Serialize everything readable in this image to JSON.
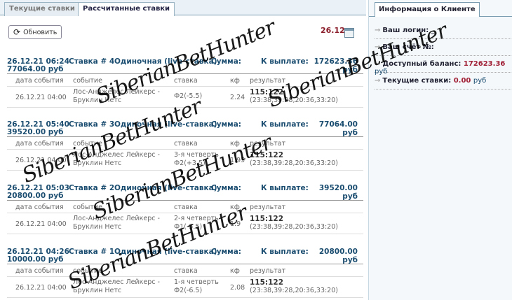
{
  "tabs": [
    {
      "label": "Текущие ставки",
      "active": false
    },
    {
      "label": "Рассчитанные ставки",
      "active": true
    }
  ],
  "refresh_label": "Обновить",
  "date_filter": "26.12",
  "columns": {
    "date": "дата события",
    "event": "событие",
    "bet": "ставка",
    "kf": "кф",
    "result": "результат"
  },
  "bets": [
    {
      "datetime": "26.12.21 06:24",
      "title": "Ставка # 4",
      "type": "Одиночная (live-ставка)",
      "sum_label": "Сумма:",
      "sum": "77064.00 руб",
      "payout_label": "К выплате:",
      "payout": "172623.36 руб",
      "event_date": "26.12.21 04:00",
      "event": "Лос-Анджелес Лейкерс - Бруклин Нетс",
      "stake_line1": "",
      "stake_line2": "Ф2(-5.5)",
      "kf": "2.24",
      "score": "115:122",
      "quarters": "(23:38,39:28,20:36,33:20)"
    },
    {
      "datetime": "26.12.21 05:40",
      "title": "Ставка # 3",
      "type": "Одиночная (live-ставка)",
      "sum_label": "Сумма:",
      "sum": "39520.00 руб",
      "payout_label": "К выплате:",
      "payout": "77064.00 руб",
      "event_date": "26.12.21 04:00",
      "event": "Лос-Анджелес Лейкерс - Бруклин Нетс",
      "stake_line1": "3-я четверть",
      "stake_line2": "Ф2(+3.5)",
      "kf": "1.95",
      "score": "115:122",
      "quarters": "(23:38,39:28,20:36,33:20)"
    },
    {
      "datetime": "26.12.21 05:03",
      "title": "Ставка # 2",
      "type": "Одиночная (live-ставка)",
      "sum_label": "Сумма:",
      "sum": "20800.00 руб",
      "payout_label": "К выплате:",
      "payout": "39520.00 руб",
      "event_date": "26.12.21 04:00",
      "event": "Лос-Анджелес Лейкерс - Бруклин Нетс",
      "stake_line1": "2-я четверть",
      "stake_line2": "Ф1(-5.5)",
      "kf": "1.9",
      "score": "115:122",
      "quarters": "(23:38,39:28,20:36,33:20)"
    },
    {
      "datetime": "26.12.21 04:26",
      "title": "Ставка # 1",
      "type": "Одиночная (live-ставка)",
      "sum_label": "Сумма:",
      "sum": "10000.00 руб",
      "payout_label": "К выплате:",
      "payout": "20800.00 руб",
      "event_date": "26.12.21 04:00",
      "event": "Лос-Анджелес Лейкерс - Бруклин Нетс",
      "stake_line1": "1-я четверть",
      "stake_line2": "Ф2(-6.5)",
      "kf": "2.08",
      "score": "115:122",
      "quarters": "(23:38,39:28,20:36,33:20)"
    }
  ],
  "client": {
    "tab": "Информация о Клиенте",
    "login_label": "Ваш логин:",
    "login": "_",
    "account_label": "Ваш счёт №:",
    "balance_label": "Доступный баланс:",
    "balance": "172623.36",
    "currency": "руб",
    "current_label": "Текущие ставки:",
    "current": "0.00"
  },
  "watermark": "SiberianBetHunter",
  "colors": {
    "accent": "#1b4d70",
    "money": "#a01f35"
  }
}
